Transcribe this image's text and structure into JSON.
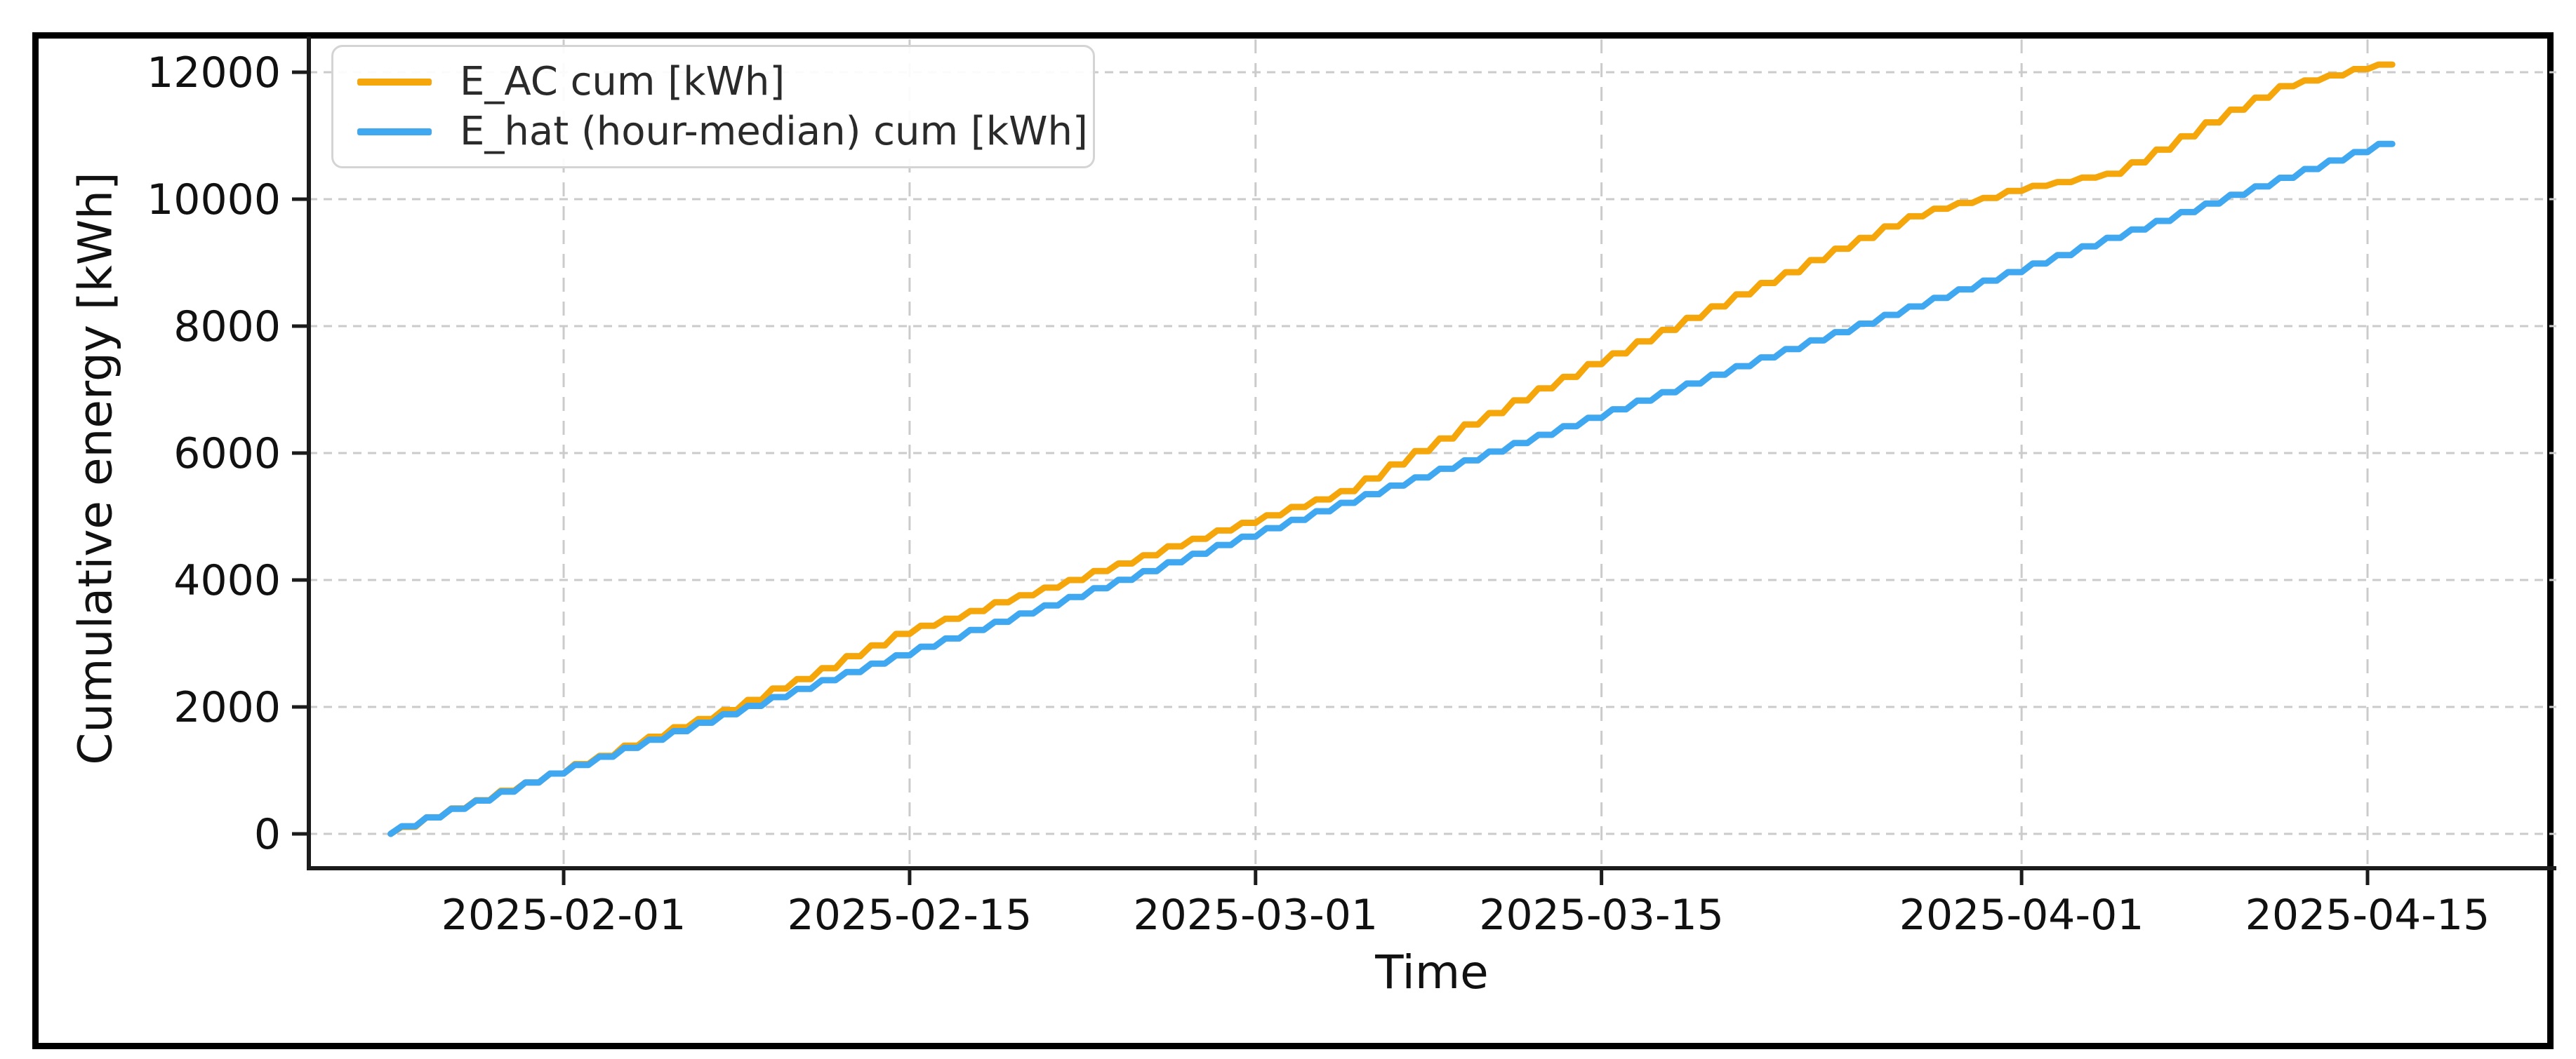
{
  "figure": {
    "background_color": "#ffffff",
    "frame_border_color": "#000000"
  },
  "chart_data": {
    "type": "line",
    "title": "",
    "xlabel": "Time",
    "ylabel": "Cumulative energy [kWh]",
    "grid": true,
    "grid_style": "dashed",
    "legend_position": "upper left",
    "ylim": [
      -550,
      12550
    ],
    "y_ticks": [
      0,
      2000,
      4000,
      6000,
      8000,
      10000,
      12000
    ],
    "x_tick_labels": [
      "2025-02-01",
      "2025-02-15",
      "2025-03-01",
      "2025-03-15",
      "2025-04-01",
      "2025-04-15"
    ],
    "x_tick_day_index": [
      7,
      21,
      35,
      49,
      66,
      80
    ],
    "dates": [
      "2025-01-25",
      "2025-01-26",
      "2025-01-27",
      "2025-01-28",
      "2025-01-29",
      "2025-01-30",
      "2025-01-31",
      "2025-02-01",
      "2025-02-02",
      "2025-02-03",
      "2025-02-04",
      "2025-02-05",
      "2025-02-06",
      "2025-02-07",
      "2025-02-08",
      "2025-02-09",
      "2025-02-10",
      "2025-02-11",
      "2025-02-12",
      "2025-02-13",
      "2025-02-14",
      "2025-02-15",
      "2025-02-16",
      "2025-02-17",
      "2025-02-18",
      "2025-02-19",
      "2025-02-20",
      "2025-02-21",
      "2025-02-22",
      "2025-02-23",
      "2025-02-24",
      "2025-02-25",
      "2025-02-26",
      "2025-02-27",
      "2025-02-28",
      "2025-03-01",
      "2025-03-02",
      "2025-03-03",
      "2025-03-04",
      "2025-03-05",
      "2025-03-06",
      "2025-03-07",
      "2025-03-08",
      "2025-03-09",
      "2025-03-10",
      "2025-03-11",
      "2025-03-12",
      "2025-03-13",
      "2025-03-14",
      "2025-03-15",
      "2025-03-16",
      "2025-03-17",
      "2025-03-18",
      "2025-03-19",
      "2025-03-20",
      "2025-03-21",
      "2025-03-22",
      "2025-03-23",
      "2025-03-24",
      "2025-03-25",
      "2025-03-26",
      "2025-03-27",
      "2025-03-28",
      "2025-03-29",
      "2025-03-30",
      "2025-03-31",
      "2025-04-01",
      "2025-04-02",
      "2025-04-03",
      "2025-04-04",
      "2025-04-05",
      "2025-04-06",
      "2025-04-07",
      "2025-04-08",
      "2025-04-09",
      "2025-04-10",
      "2025-04-11",
      "2025-04-12",
      "2025-04-13",
      "2025-04-14",
      "2025-04-15",
      "2025-04-16"
    ],
    "series": [
      {
        "name": "E_AC cum [kWh]",
        "color": "#F5A60A",
        "values": [
          0,
          110,
          260,
          400,
          530,
          680,
          810,
          950,
          1100,
          1230,
          1390,
          1530,
          1680,
          1810,
          1950,
          2110,
          2290,
          2440,
          2610,
          2800,
          2970,
          3150,
          3280,
          3390,
          3510,
          3650,
          3760,
          3880,
          4000,
          4140,
          4260,
          4390,
          4530,
          4650,
          4780,
          4900,
          5020,
          5150,
          5270,
          5400,
          5600,
          5820,
          6030,
          6230,
          6450,
          6630,
          6830,
          7020,
          7200,
          7400,
          7570,
          7760,
          7940,
          8130,
          8310,
          8500,
          8680,
          8850,
          9040,
          9220,
          9390,
          9570,
          9730,
          9850,
          9940,
          10020,
          10130,
          10210,
          10270,
          10340,
          10400,
          10580,
          10780,
          10990,
          11210,
          11410,
          11600,
          11780,
          11870,
          11950,
          12050,
          12120
        ]
      },
      {
        "name": "E_hat (hour-median) cum [kWh]",
        "color": "#3FA8F0",
        "values": [
          0,
          120,
          260,
          395,
          525,
          665,
          810,
          950,
          1085,
          1215,
          1355,
          1483,
          1619,
          1751,
          1885,
          2017,
          2155,
          2285,
          2421,
          2549,
          2683,
          2813,
          2949,
          3079,
          3213,
          3341,
          3473,
          3599,
          3733,
          3871,
          4003,
          4139,
          4279,
          4413,
          4551,
          4683,
          4817,
          4947,
          5083,
          5215,
          5353,
          5487,
          5617,
          5753,
          5885,
          6023,
          6157,
          6287,
          6423,
          6555,
          6689,
          6827,
          6959,
          7095,
          7235,
          7369,
          7507,
          7639,
          7775,
          7905,
          8039,
          8177,
          8309,
          8445,
          8579,
          8717,
          8851,
          8987,
          9119,
          9257,
          9391,
          9521,
          9657,
          9797,
          9931,
          10069,
          10201,
          10337,
          10475,
          10609,
          10741,
          10871
        ]
      }
    ]
  }
}
